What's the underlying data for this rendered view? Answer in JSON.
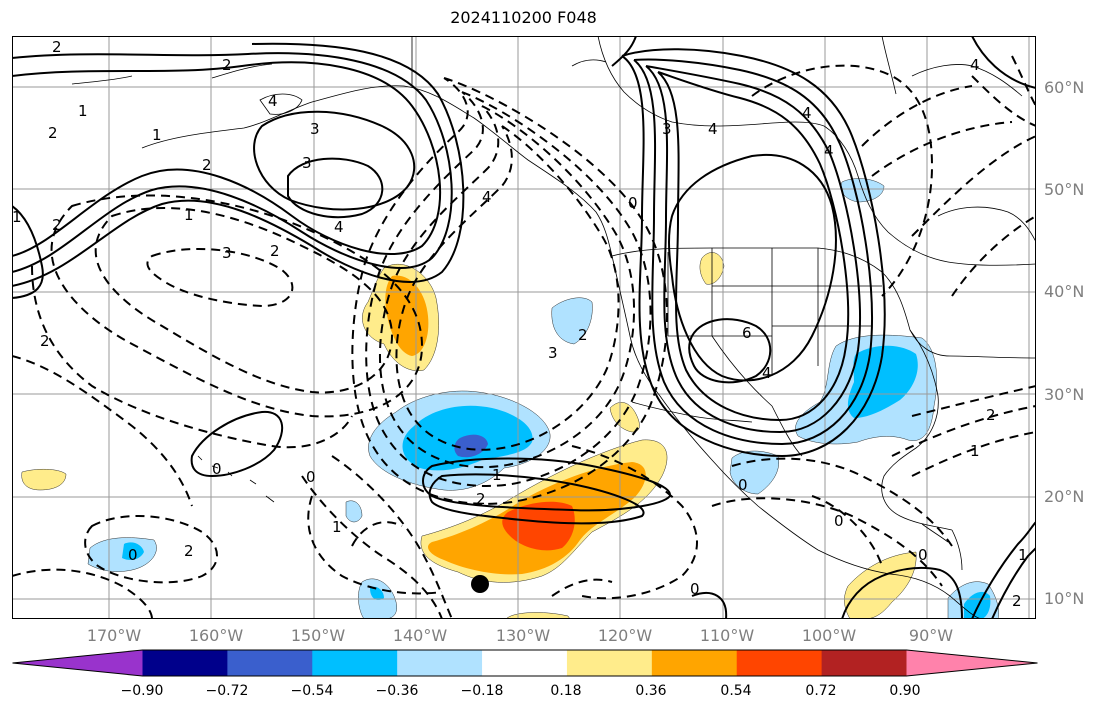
{
  "title": "2024110200 F048",
  "lat_labels": [
    "60°N",
    "50°N",
    "40°N",
    "30°N",
    "20°N",
    "10°N"
  ],
  "lon_labels": [
    "170°W",
    "160°W",
    "150°W",
    "140°W",
    "130°W",
    "120°W",
    "110°W",
    "100°W",
    "90°W"
  ],
  "colorbar": {
    "tick_labels": [
      "−0.90",
      "−0.72",
      "−0.54",
      "−0.36",
      "−0.18",
      "0.18",
      "0.36",
      "0.54",
      "0.72",
      "0.90"
    ],
    "colors": [
      "#9933cc",
      "#00008b",
      "#3a5fcd",
      "#00bfff",
      "#b0e2ff",
      "#ffffff",
      "#ffec8b",
      "#ffa500",
      "#ff4500",
      "#b22222",
      "#ff82ab"
    ]
  },
  "contour_labels": {
    "solid": [
      "2",
      "2",
      "1",
      "2",
      "1",
      "2",
      "3",
      "3",
      "4",
      "4",
      "3",
      "4",
      "4",
      "6",
      "4",
      "1",
      "2",
      "0",
      "0",
      "0",
      "0",
      "0",
      "1",
      "2",
      "4"
    ],
    "dashed": [
      "2",
      "1",
      "3",
      "2",
      "2",
      "4",
      "3",
      "2",
      "0",
      "1",
      "0",
      "1",
      "2",
      "0",
      "2",
      "1",
      "4"
    ]
  },
  "fill_colors": {
    "light_blue": "#b0e2ff",
    "blue": "#00bfff",
    "mid_blue": "#3a5fcd",
    "yellow": "#ffec8b",
    "orange": "#ffa500",
    "red": "#ff4500"
  },
  "markers": [
    {
      "name": "black-dot",
      "lon": -134.5,
      "lat": 11.5
    }
  ]
}
